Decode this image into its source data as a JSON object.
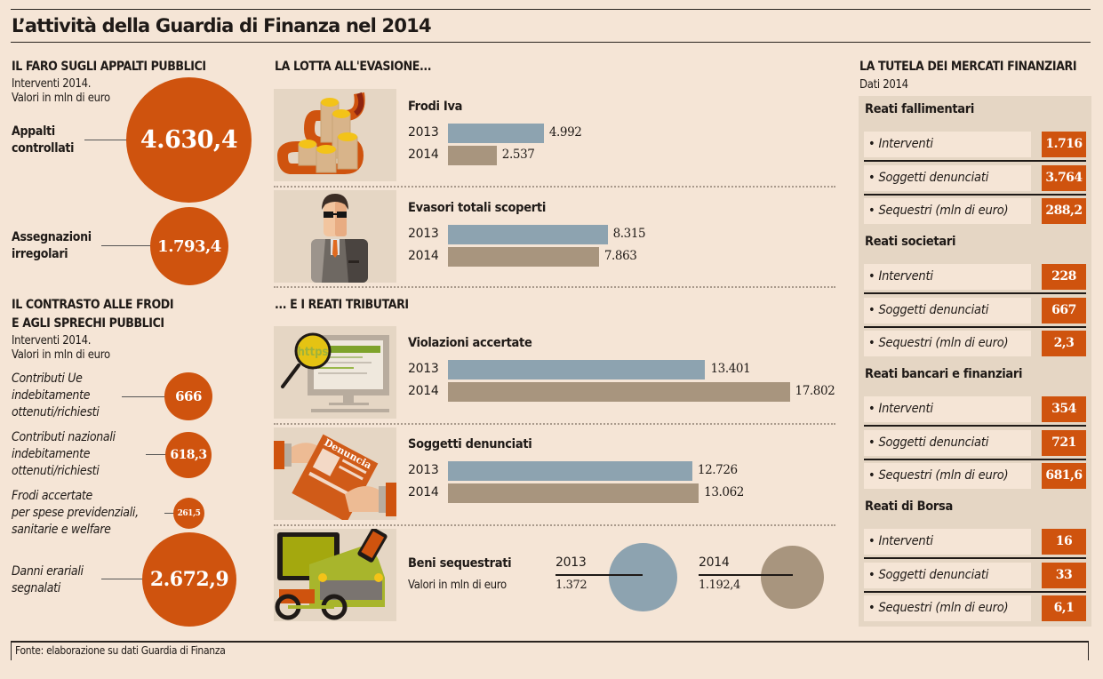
{
  "title": "L’attività della Guardia di Finanza nel 2014",
  "colors": {
    "background": "#f5e5d6",
    "orange": "#cf530e",
    "bar_2013": "#8da3b0",
    "bar_2014": "#a8957e",
    "panel": "#e5d6c4"
  },
  "appalti": {
    "heading": "IL FARO SUGLI APPALTI PUBBLICI",
    "sub1": "Interventi 2014.",
    "sub2": "Valori in mln di euro",
    "items": [
      {
        "label1": "Appalti",
        "label2": "controllati",
        "value": "4.630,4"
      },
      {
        "label1": "Assegnazioni",
        "label2": "irregolari",
        "value": "1.793,4"
      }
    ]
  },
  "frodi": {
    "heading1": "IL CONTRASTO ALLE FRODI",
    "heading2": "E AGLI SPRECHI PUBBLICI",
    "sub1": "Interventi 2014.",
    "sub2": "Valori in mln di euro",
    "items": [
      {
        "lines": [
          "Contributi Ue",
          "indebitamente",
          "ottenuti/richiesti"
        ],
        "value": "666"
      },
      {
        "lines": [
          "Contributi nazionali",
          "indebitamente",
          "ottenuti/richiesti"
        ],
        "value": "618,3"
      },
      {
        "lines": [
          "Frodi accertate",
          "per spese previdenziali,",
          "sanitarie e welfare"
        ],
        "value": "261,5"
      },
      {
        "lines": [
          "Danni erariali",
          "segnalati"
        ],
        "value": "2.672,9"
      }
    ]
  },
  "evasione": {
    "heading": "LA LOTTA ALL'EVASIONE...",
    "heading2": "... E I REATI TRIBUTARI",
    "illustrations": [
      "coins-ribbon-illustration",
      "evader-man-illustration",
      "https-magnifier-illustration",
      "denuncia-document-illustration",
      "seized-goods-illustration"
    ],
    "beni": {
      "title": "Beni sequestrati",
      "sub": "Valori in mln di euro",
      "year_2013": "2013",
      "value_2013": "1.372",
      "year_2014": "2014",
      "value_2014": "1.192,4"
    }
  },
  "chart_data": {
    "type": "bar",
    "orientation": "horizontal",
    "series": [
      {
        "name": "2013",
        "color": "#8da3b0"
      },
      {
        "name": "2014",
        "color": "#a8957e"
      }
    ],
    "groups": [
      {
        "title": "Frodi Iva",
        "values": [
          4992,
          2537
        ],
        "labels": [
          "4.992",
          "2.537"
        ]
      },
      {
        "title": "Evasori totali scoperti",
        "values": [
          8315,
          7863
        ],
        "labels": [
          "8.315",
          "7.863"
        ]
      },
      {
        "title": "Violazioni accertate",
        "values": [
          13401,
          17802
        ],
        "labels": [
          "13.401",
          "17.802"
        ]
      },
      {
        "title": "Soggetti denunciati",
        "values": [
          12726,
          13062
        ],
        "labels": [
          "12.726",
          "13.062"
        ]
      }
    ],
    "bubbles_appalti": [
      4630.4,
      1793.4
    ],
    "bubbles_frodi": [
      666,
      618.3,
      261.5,
      2672.9
    ],
    "beni_sequestrati": [
      1372,
      1192.4
    ]
  },
  "mercati": {
    "heading": "LA TUTELA DEI MERCATI FINANZIARI",
    "sub": "Dati 2014",
    "groups": [
      {
        "title": "Reati fallimentari",
        "rows": [
          {
            "label": "Interventi",
            "value": "1.716"
          },
          {
            "label": "Soggetti denunciati",
            "value": "3.764"
          },
          {
            "label": "Sequestri (mln di euro)",
            "value": "288,2"
          }
        ]
      },
      {
        "title": "Reati societari",
        "rows": [
          {
            "label": "Interventi",
            "value": "228"
          },
          {
            "label": "Soggetti denunciati",
            "value": "667"
          },
          {
            "label": "Sequestri (mln di euro)",
            "value": "2,3"
          }
        ]
      },
      {
        "title": "Reati bancari e finanziari",
        "rows": [
          {
            "label": "Interventi",
            "value": "354"
          },
          {
            "label": "Soggetti denunciati",
            "value": "721"
          },
          {
            "label": "Sequestri (mln di euro)",
            "value": "681,6"
          }
        ]
      },
      {
        "title": "Reati di Borsa",
        "rows": [
          {
            "label": "Interventi",
            "value": "16"
          },
          {
            "label": "Soggetti denunciati",
            "value": "33"
          },
          {
            "label": "Sequestri (mln di euro)",
            "value": "6,1"
          }
        ]
      }
    ]
  },
  "source": "Fonte: elaborazione su dati Guardia di Finanza"
}
